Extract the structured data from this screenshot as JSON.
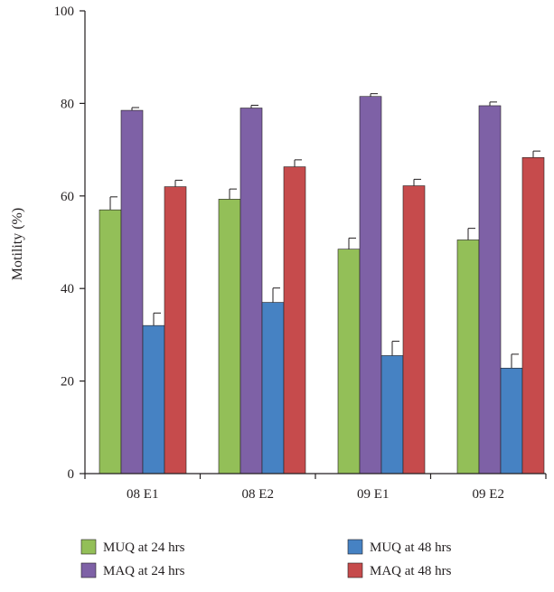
{
  "chart_data": {
    "type": "bar",
    "title": "",
    "xlabel": "",
    "ylabel": "Motility (%)",
    "ylim": [
      0,
      100
    ],
    "yticks": [
      0,
      20,
      40,
      60,
      80,
      100
    ],
    "grid": false,
    "legend_position": "bottom",
    "categories": [
      "08 E1",
      "08 E2",
      "09 E1",
      "09 E2"
    ],
    "series": [
      {
        "name": "MUQ at 24 hrs",
        "color": "#93bf58",
        "values": [
          57.0,
          59.3,
          48.5,
          50.5
        ],
        "errors": [
          2.8,
          2.2,
          2.4,
          2.5
        ]
      },
      {
        "name": "MAQ at 24 hrs",
        "color": "#7e61a6",
        "values": [
          78.5,
          79.0,
          81.5,
          79.5
        ],
        "errors": [
          0.6,
          0.6,
          0.6,
          0.8
        ]
      },
      {
        "name": "MUQ at 48 hrs",
        "color": "#4682c3",
        "values": [
          32.0,
          37.0,
          25.5,
          22.8
        ],
        "errors": [
          2.7,
          3.1,
          3.1,
          3.0
        ]
      },
      {
        "name": "MAQ at 48 hrs",
        "color": "#c64b4c",
        "values": [
          62.0,
          66.3,
          62.2,
          68.3
        ],
        "errors": [
          1.4,
          1.5,
          1.4,
          1.4
        ]
      }
    ]
  }
}
